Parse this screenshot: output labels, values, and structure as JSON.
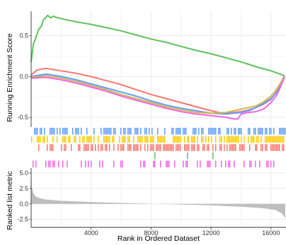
{
  "chart_data": {
    "type": "line",
    "panels": {
      "running_es": {
        "ylabel": "Running Enrichment Score",
        "ylim": [
          -0.62,
          0.8
        ],
        "yticks": [
          0.5,
          0.0,
          -0.5
        ],
        "ytick_labels": [
          "0.5",
          "0.0",
          "-0.5"
        ],
        "grid": true
      },
      "ranked_metric": {
        "ylabel": "Ranked list metric",
        "ylim": [
          -3.8,
          5.8
        ],
        "yticks": [
          5.0,
          2.5,
          0.0,
          -2.5
        ],
        "ytick_labels": [
          "5.0",
          "2.5",
          "0.0",
          "-2.5"
        ],
        "grid": true
      }
    },
    "x": {
      "label": "Rank in Ordered Dataset",
      "lim": [
        0,
        17000
      ],
      "ticks": [
        4000,
        8000,
        12000,
        16000
      ],
      "tick_labels": [
        "4000",
        "8000",
        "12000",
        "16000"
      ]
    },
    "series": [
      {
        "color": "#5ec15e",
        "x": [
          0,
          150,
          300,
          500,
          700,
          800,
          950,
          1000,
          1100,
          1300,
          1500,
          1600,
          1800,
          2000,
          2500,
          3000,
          4000,
          5000,
          6000,
          7000,
          8000,
          9000,
          10000,
          11000,
          12000,
          13000,
          14000,
          15000,
          16000,
          16900
        ],
        "y": [
          0.18,
          0.4,
          0.47,
          0.58,
          0.62,
          0.69,
          0.72,
          0.73,
          0.75,
          0.72,
          0.74,
          0.73,
          0.72,
          0.71,
          0.69,
          0.67,
          0.64,
          0.6,
          0.56,
          0.51,
          0.46,
          0.42,
          0.37,
          0.32,
          0.28,
          0.23,
          0.18,
          0.12,
          0.07,
          0.01
        ]
      },
      {
        "color": "#f8766d",
        "x": [
          0,
          400,
          1000,
          2000,
          3000,
          4000,
          5000,
          6000,
          7000,
          8000,
          9000,
          10000,
          11000,
          12000,
          12500,
          13000,
          13500,
          14000,
          14500,
          15000,
          15500,
          16000,
          16400,
          16700,
          16900
        ],
        "y": [
          0.02,
          0.08,
          0.1,
          0.07,
          0.04,
          0.0,
          -0.05,
          -0.1,
          -0.16,
          -0.22,
          -0.27,
          -0.32,
          -0.37,
          -0.42,
          -0.44,
          -0.45,
          -0.44,
          -0.43,
          -0.41,
          -0.38,
          -0.34,
          -0.28,
          -0.18,
          -0.06,
          0.01
        ]
      },
      {
        "color": "#619cff",
        "x": [
          0,
          1000,
          2000,
          3000,
          4000,
          5000,
          6000,
          7000,
          8000,
          9000,
          10000,
          11000,
          12000,
          13000,
          14000,
          14500,
          15000,
          15500,
          16000,
          16400,
          16700,
          16900
        ],
        "y": [
          0.0,
          0.03,
          0.0,
          -0.04,
          -0.09,
          -0.14,
          -0.19,
          -0.24,
          -0.3,
          -0.35,
          -0.39,
          -0.42,
          -0.45,
          -0.46,
          -0.44,
          -0.42,
          -0.38,
          -0.33,
          -0.27,
          -0.19,
          -0.09,
          0.0
        ]
      },
      {
        "color": "#cdb84a",
        "x": [
          0,
          1000,
          2000,
          3000,
          4000,
          5000,
          6000,
          7000,
          8000,
          9000,
          10000,
          11000,
          12000,
          13000,
          13500,
          14000,
          14500,
          15000,
          15500,
          16000,
          16400,
          16700,
          16900
        ],
        "y": [
          -0.01,
          0.01,
          -0.02,
          -0.06,
          -0.11,
          -0.16,
          -0.22,
          -0.27,
          -0.32,
          -0.37,
          -0.41,
          -0.44,
          -0.45,
          -0.44,
          -0.42,
          -0.4,
          -0.38,
          -0.36,
          -0.31,
          -0.24,
          -0.15,
          -0.06,
          0.0
        ]
      },
      {
        "color": "#f564e3",
        "x": [
          0,
          1000,
          2000,
          3000,
          4000,
          5000,
          6000,
          7000,
          8000,
          9000,
          10000,
          11000,
          12000,
          12500,
          13000,
          13500,
          13800,
          14000,
          14500,
          15000,
          15500,
          16000,
          16400,
          16700,
          16900
        ],
        "y": [
          -0.02,
          -0.01,
          -0.04,
          -0.08,
          -0.13,
          -0.18,
          -0.24,
          -0.29,
          -0.34,
          -0.39,
          -0.43,
          -0.46,
          -0.48,
          -0.49,
          -0.5,
          -0.52,
          -0.52,
          -0.46,
          -0.44,
          -0.43,
          -0.4,
          -0.32,
          -0.22,
          -0.1,
          -0.01
        ]
      }
    ],
    "rug": [
      {
        "color": "#619cff",
        "density": 0.55,
        "start": 0,
        "end": 17000,
        "seed": 11
      },
      {
        "color": "#ffc800",
        "density": 0.6,
        "start": 0,
        "end": 17000,
        "seed": 23
      },
      {
        "color": "#f8766d",
        "density": 0.58,
        "start": 0,
        "end": 17000,
        "seed": 37
      },
      {
        "color": "#5ec15e",
        "density": 0.03,
        "start": 0,
        "end": 17000,
        "seed": 41
      },
      {
        "color": "#f564e3",
        "density": 0.3,
        "start": 0,
        "end": 17000,
        "seed": 53
      }
    ],
    "ranked_metric": {
      "color": "#bebebe",
      "x": [
        0,
        50,
        150,
        300,
        600,
        1000,
        2000,
        4000,
        6000,
        8000,
        10000,
        12000,
        14000,
        15500,
        16300,
        16700,
        16950
      ],
      "y": [
        5.3,
        2.7,
        1.7,
        1.2,
        0.9,
        0.7,
        0.5,
        0.3,
        0.15,
        0.03,
        -0.1,
        -0.25,
        -0.45,
        -0.7,
        -1.0,
        -1.5,
        -2.3
      ]
    }
  }
}
